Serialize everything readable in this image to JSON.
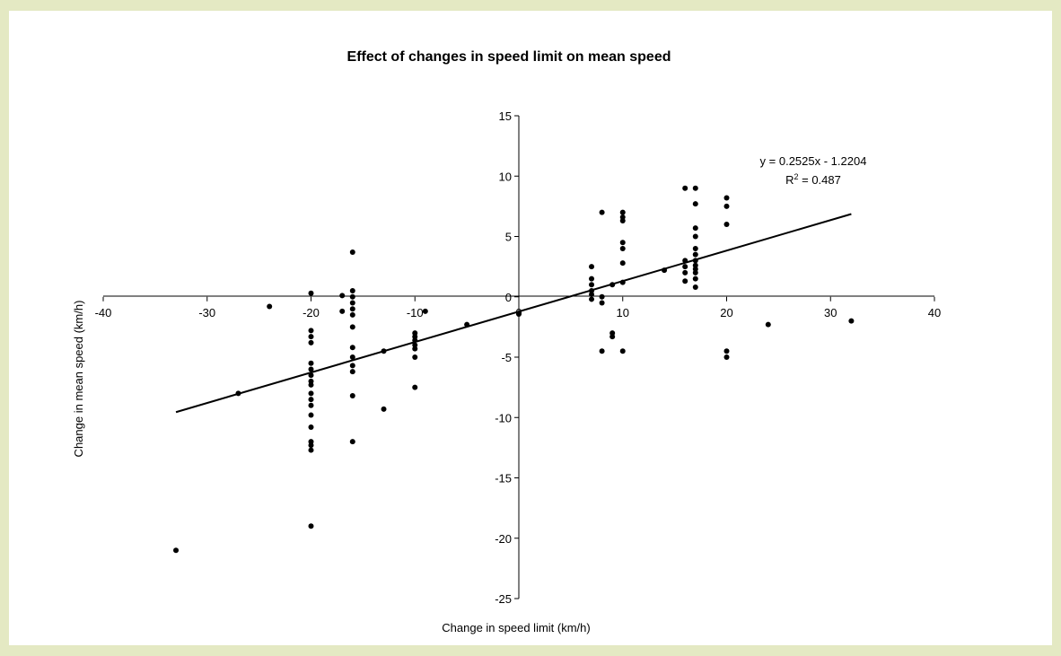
{
  "chart_data": {
    "type": "scatter",
    "title": "Effect of changes in speed limit on mean speed",
    "xlabel": "Change in speed limit (km/h)",
    "ylabel": "Change in mean speed (km/h)",
    "xlim": [
      -40,
      40
    ],
    "ylim": [
      -25,
      15
    ],
    "xticks": [
      -40,
      -30,
      -20,
      -10,
      0,
      10,
      20,
      30,
      40
    ],
    "yticks": [
      -25,
      -20,
      -15,
      -10,
      -5,
      0,
      5,
      10,
      15
    ],
    "xtick_labels": [
      "-40",
      "-30",
      "-20",
      "-10",
      "0",
      "10",
      "20",
      "30",
      "40"
    ],
    "ytick_labels": [
      "-25",
      "-20",
      "-15",
      "-10",
      "-5",
      "0",
      "5",
      "10",
      "15"
    ],
    "grid": false,
    "legend": "none",
    "marker_color": "#000000",
    "series": [
      {
        "points": [
          [
            -33,
            -21.0
          ],
          [
            -27,
            -8.0
          ],
          [
            -24,
            -0.8
          ],
          [
            -20,
            0.3
          ],
          [
            -20,
            -2.8
          ],
          [
            -20,
            -3.3
          ],
          [
            -20,
            -3.8
          ],
          [
            -20,
            -5.5
          ],
          [
            -20,
            -6.0
          ],
          [
            -20,
            -6.5
          ],
          [
            -20,
            -7.0
          ],
          [
            -20,
            -7.3
          ],
          [
            -20,
            -8.0
          ],
          [
            -20,
            -8.5
          ],
          [
            -20,
            -9.0
          ],
          [
            -20,
            -9.8
          ],
          [
            -20,
            -10.8
          ],
          [
            -20,
            -12.0
          ],
          [
            -20,
            -12.3
          ],
          [
            -20,
            -12.7
          ],
          [
            -20,
            -19.0
          ],
          [
            -17,
            0.1
          ],
          [
            -17,
            -1.2
          ],
          [
            -16,
            3.7
          ],
          [
            -16,
            0.5
          ],
          [
            -16,
            0.0
          ],
          [
            -16,
            -0.5
          ],
          [
            -16,
            -1.0
          ],
          [
            -16,
            -1.5
          ],
          [
            -16,
            -2.5
          ],
          [
            -16,
            -4.2
          ],
          [
            -16,
            -5.0
          ],
          [
            -16,
            -5.7
          ],
          [
            -16,
            -6.2
          ],
          [
            -16,
            -8.2
          ],
          [
            -16,
            -12.0
          ],
          [
            -13,
            -4.5
          ],
          [
            -13,
            -9.3
          ],
          [
            -10,
            -3.0
          ],
          [
            -10,
            -3.3
          ],
          [
            -10,
            -3.6
          ],
          [
            -10,
            -4.0
          ],
          [
            -10,
            -4.3
          ],
          [
            -10,
            -5.0
          ],
          [
            -10,
            -7.5
          ],
          [
            -9,
            -1.2
          ],
          [
            -5,
            -2.3
          ],
          [
            0,
            -1.4
          ],
          [
            7,
            2.5
          ],
          [
            7,
            1.5
          ],
          [
            7,
            1.0
          ],
          [
            7,
            0.5
          ],
          [
            7,
            0.2
          ],
          [
            7,
            -0.2
          ],
          [
            8,
            7.0
          ],
          [
            8,
            0.0
          ],
          [
            8,
            -0.5
          ],
          [
            8,
            -4.5
          ],
          [
            9,
            1.0
          ],
          [
            9,
            -3.0
          ],
          [
            9,
            -3.3
          ],
          [
            10,
            7.0
          ],
          [
            10,
            6.6
          ],
          [
            10,
            6.3
          ],
          [
            10,
            4.5
          ],
          [
            10,
            4.0
          ],
          [
            10,
            2.8
          ],
          [
            10,
            1.2
          ],
          [
            10,
            -4.5
          ],
          [
            14,
            2.2
          ],
          [
            16,
            9.0
          ],
          [
            16,
            3.0
          ],
          [
            16,
            2.5
          ],
          [
            16,
            2.0
          ],
          [
            16,
            1.3
          ],
          [
            17,
            9.0
          ],
          [
            17,
            7.7
          ],
          [
            17,
            5.7
          ],
          [
            17,
            5.0
          ],
          [
            17,
            4.0
          ],
          [
            17,
            3.5
          ],
          [
            17,
            3.0
          ],
          [
            17,
            2.6
          ],
          [
            17,
            2.3
          ],
          [
            17,
            2.0
          ],
          [
            17,
            1.5
          ],
          [
            17,
            0.8
          ],
          [
            20,
            8.2
          ],
          [
            20,
            7.5
          ],
          [
            20,
            6.0
          ],
          [
            20,
            -4.5
          ],
          [
            20,
            -5.0
          ],
          [
            24,
            -2.3
          ],
          [
            32,
            -2.0
          ]
        ]
      }
    ],
    "trendline": {
      "slope": 0.2525,
      "intercept": -1.2204,
      "x_range": [
        -33,
        32
      ],
      "equation": "y = 0.2525x - 1.2204",
      "r2_prefix": "R",
      "r2_sup": "2",
      "r2_value": " = 0.487"
    }
  }
}
